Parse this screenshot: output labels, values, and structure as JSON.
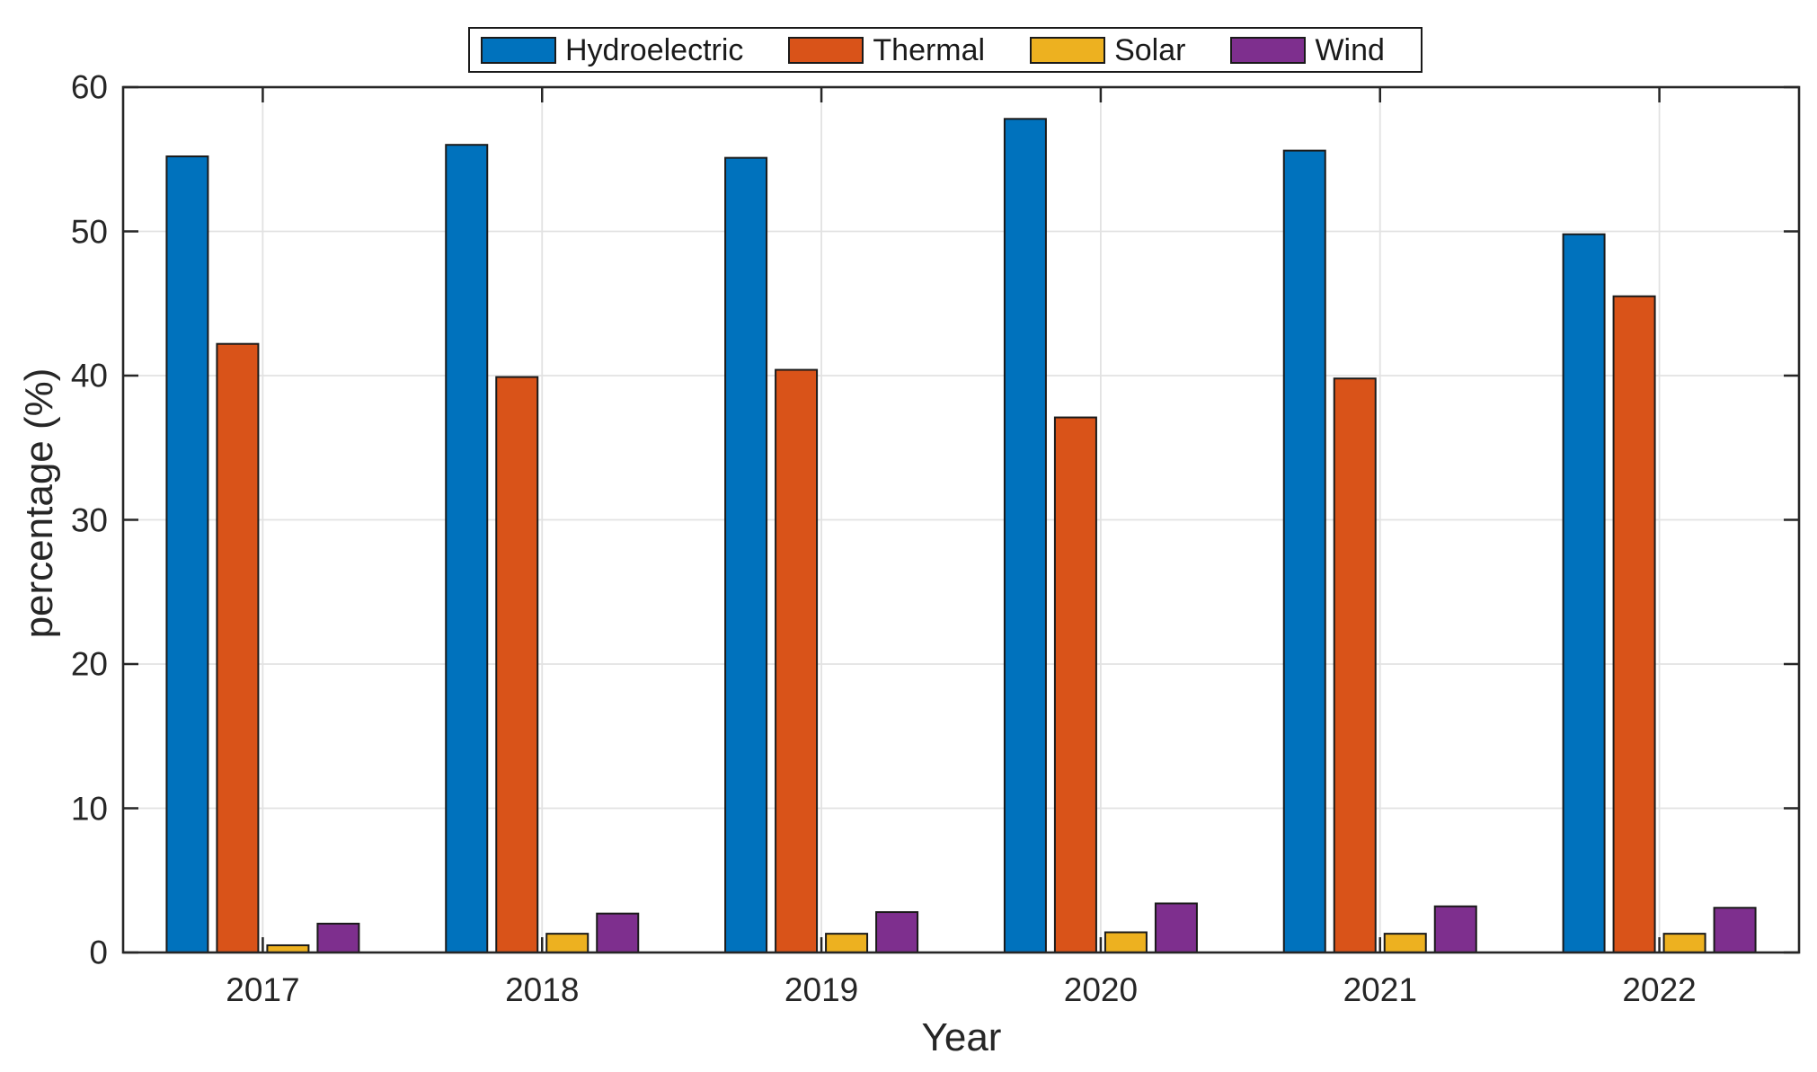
{
  "page": {
    "background": "#FFFFFF"
  },
  "legend": {
    "position": "top",
    "border_color": "#1A1A1A",
    "entries": [
      "Hydroelectric",
      "Thermal",
      "Solar",
      "Wind"
    ]
  },
  "chart_data": {
    "type": "bar",
    "title": "",
    "xlabel": "Year",
    "ylabel": "percentage (%)",
    "categories": [
      "2017",
      "2018",
      "2019",
      "2020",
      "2021",
      "2022"
    ],
    "series": [
      {
        "name": "Hydroelectric",
        "color": "#0072BD",
        "values": [
          55.2,
          56.0,
          55.1,
          57.8,
          55.6,
          49.8
        ]
      },
      {
        "name": "Thermal",
        "color": "#D95319",
        "values": [
          42.2,
          39.9,
          40.4,
          37.1,
          39.8,
          45.5
        ]
      },
      {
        "name": "Solar",
        "color": "#EDB120",
        "values": [
          0.5,
          1.3,
          1.3,
          1.4,
          1.3,
          1.3
        ]
      },
      {
        "name": "Wind",
        "color": "#7E2F8E",
        "values": [
          2.0,
          2.7,
          2.8,
          3.4,
          3.2,
          3.1
        ]
      }
    ],
    "ylim": [
      0,
      60
    ],
    "yticks": [
      "0",
      "10",
      "20",
      "30",
      "40",
      "50",
      "60"
    ],
    "grid": true,
    "legend_position": "top",
    "axis_color": "#262626",
    "grid_color": "#E2E2E2",
    "bar_edge_color": "#1A1A1A"
  }
}
